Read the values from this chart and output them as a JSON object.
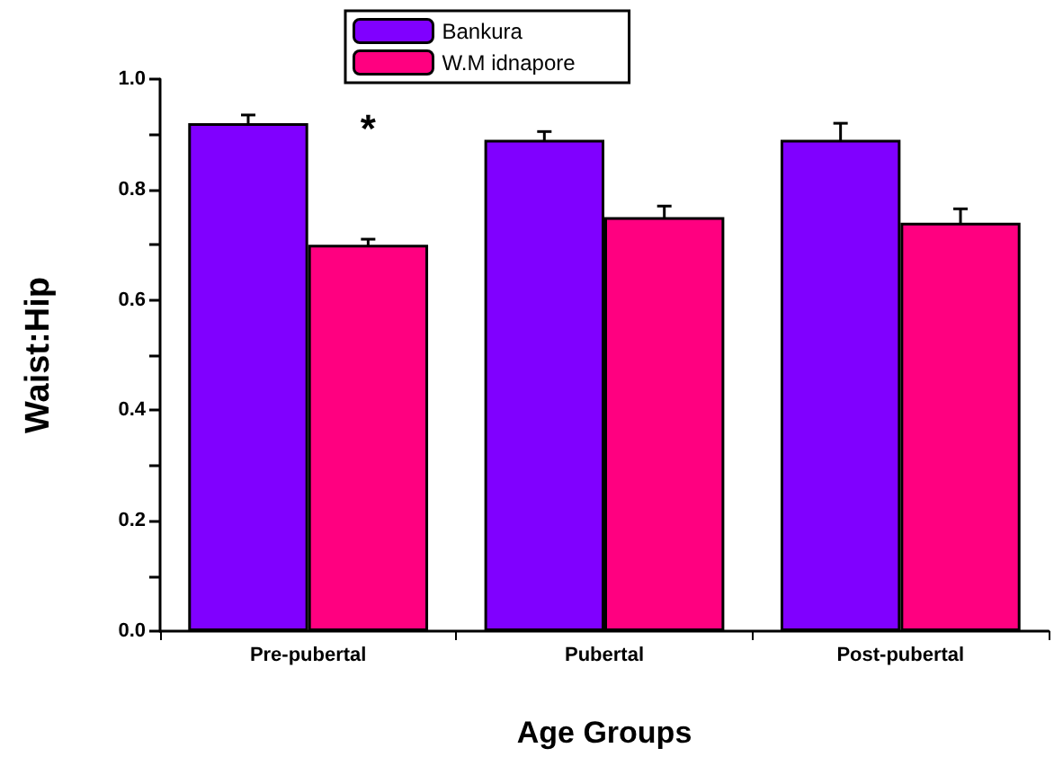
{
  "chart_data": {
    "type": "bar",
    "xlabel": "Age Groups",
    "ylabel": "Waist:Hip",
    "categories": [
      "Pre-pubertal",
      "Pubertal",
      "Post-pubertal"
    ],
    "series": [
      {
        "name": "Bankura",
        "color": "#8000ff",
        "values": [
          0.92,
          0.89,
          0.89
        ],
        "errors": [
          0.015,
          0.015,
          0.03
        ]
      },
      {
        "name": "W.M idnapore",
        "color": "#ff0080",
        "values": [
          0.7,
          0.75,
          0.74
        ],
        "errors": [
          0.01,
          0.02,
          0.025
        ]
      }
    ],
    "ylim": [
      0,
      1.0
    ],
    "yticks": [
      {
        "value": 0,
        "label": "0.0"
      },
      {
        "value": 0.1,
        "label": null
      },
      {
        "value": 0.2,
        "label": "0.2"
      },
      {
        "value": 0.3,
        "label": null
      },
      {
        "value": 0.4,
        "label": "0.4"
      },
      {
        "value": 0.5,
        "label": null
      },
      {
        "value": 0.6,
        "label": "0.6"
      },
      {
        "value": 0.7,
        "label": null
      },
      {
        "value": 0.8,
        "label": "0.8"
      },
      {
        "value": 0.9,
        "label": null
      },
      {
        "value": 1,
        "label": "1.0"
      }
    ],
    "annotations": [
      {
        "text": "*",
        "x": "Pre-pubertal",
        "y": 0.91
      }
    ],
    "legend": "top",
    "grid": false
  }
}
